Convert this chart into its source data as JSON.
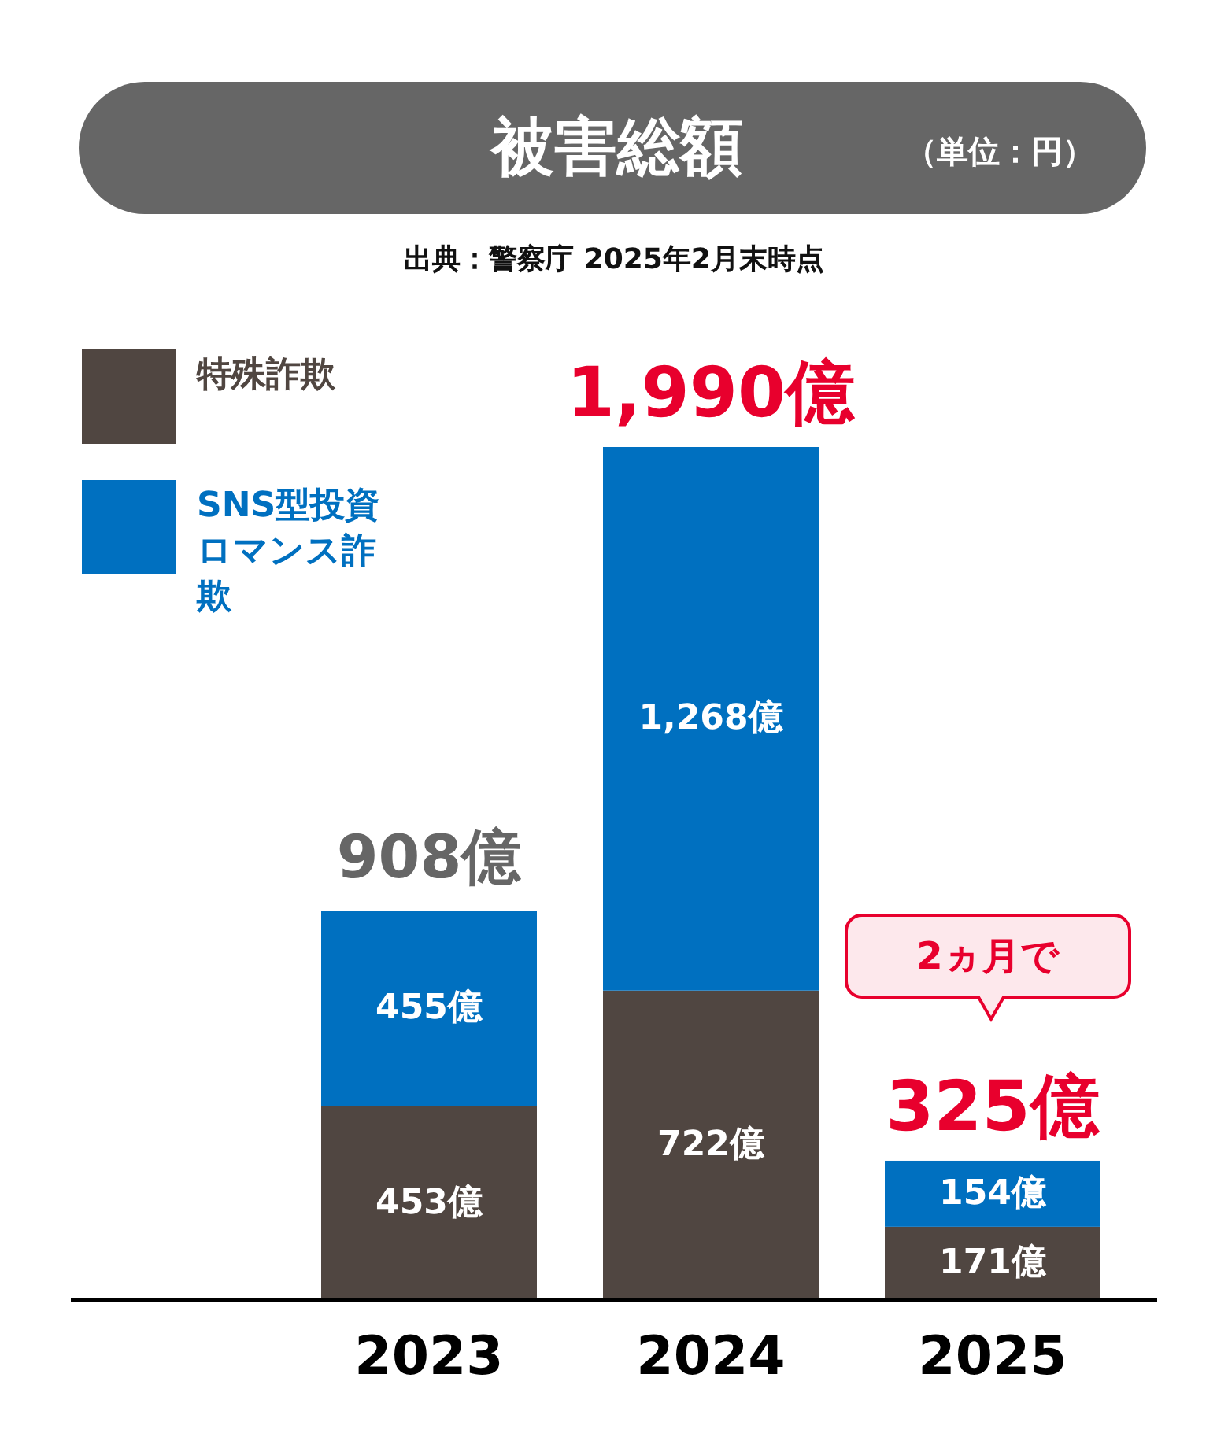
{
  "chart_data": {
    "type": "bar",
    "stacked": true,
    "title": "被害総額",
    "subtitle": "（単位：円）",
    "categories": [
      "2023",
      "2024",
      "2025"
    ],
    "series": [
      {
        "name": "特殊詐欺",
        "color": "#504641",
        "values": [
          453,
          722,
          171
        ],
        "value_labels": [
          "453億",
          "722億",
          "171億"
        ]
      },
      {
        "name": "SNS型投資ロマンス詐欺",
        "color": "#0070c0",
        "values": [
          455,
          1268,
          154
        ],
        "value_labels": [
          "455億",
          "1,268億",
          "154億"
        ]
      }
    ],
    "totals": [
      "908億",
      "1,990億",
      "325億"
    ],
    "annotations": [
      "出典：警察庁 2025年2月末時点",
      "2ヵ月で"
    ],
    "legend": "top left"
  }
}
